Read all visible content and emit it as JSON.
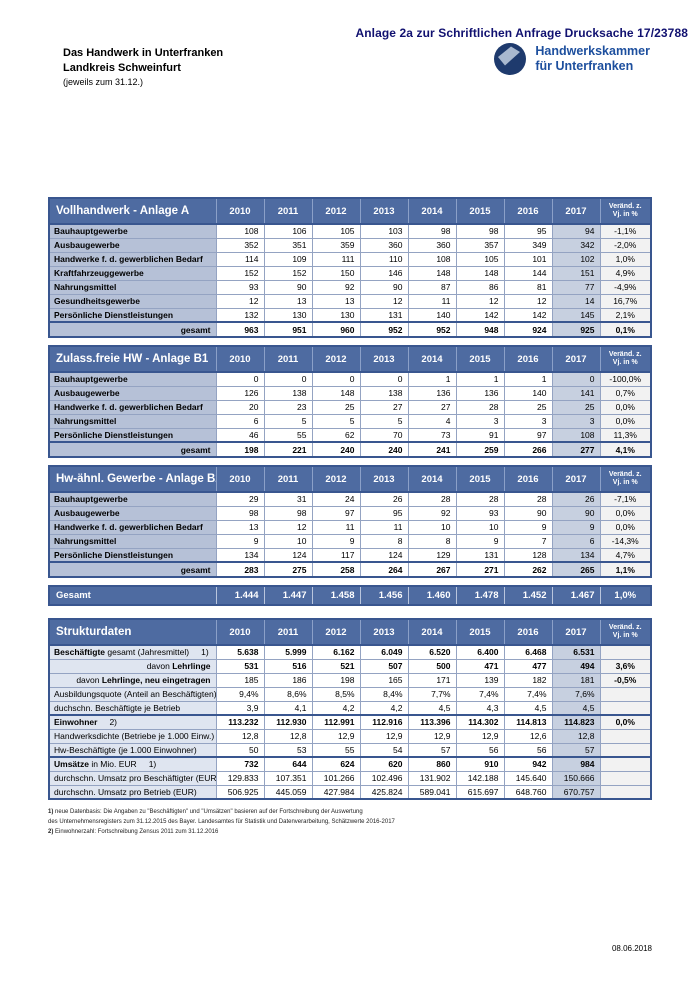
{
  "page": {
    "anlage_header": "Anlage 2a zur Schriftlichen Anfrage Drucksache 17/23788",
    "title_line1": "Das Handwerk in Unterfranken",
    "title_line2": "Landkreis Schweinfurt",
    "title_line3": "(jeweils zum 31.12.)",
    "logo_line1": "Handwerkskammer",
    "logo_line2": "für Unterfranken",
    "logo_icon": "hwk-circle-emblem",
    "footer_date": "08.06.2018"
  },
  "colors": {
    "header_blue": "#4e6ba1",
    "label_bg": "#b6c1d7",
    "label_bg_light": "#dfe5f0",
    "col2017_bg": "#c7d0e0",
    "change_bg": "#f2f2f2",
    "border_dark": "#39568f",
    "grid": "#94a3c2",
    "navy_text": "#111170",
    "logo_blue": "#1d4f9e",
    "logo_circle": "#1e3a6d",
    "logo_shape": "#a8b8cf"
  },
  "columns": {
    "years": [
      "2010",
      "2011",
      "2012",
      "2013",
      "2014",
      "2015",
      "2016",
      "2017"
    ],
    "change_label": "Veränd. z.\nVj. in %"
  },
  "tables": [
    {
      "title": "Vollhandwerk - Anlage A",
      "rows": [
        {
          "label": "Bauhauptgewerbe",
          "values": [
            "108",
            "106",
            "105",
            "103",
            "98",
            "98",
            "95",
            "94"
          ],
          "change": "-1,1%"
        },
        {
          "label": "Ausbaugewerbe",
          "values": [
            "352",
            "351",
            "359",
            "360",
            "360",
            "357",
            "349",
            "342"
          ],
          "change": "-2,0%"
        },
        {
          "label": "Handwerke f. d. gewerblichen Bedarf",
          "values": [
            "114",
            "109",
            "111",
            "110",
            "108",
            "105",
            "101",
            "102"
          ],
          "change": "1,0%"
        },
        {
          "label": "Kraftfahrzeuggewerbe",
          "values": [
            "152",
            "152",
            "150",
            "146",
            "148",
            "148",
            "144",
            "151"
          ],
          "change": "4,9%"
        },
        {
          "label": "Nahrungsmittel",
          "values": [
            "93",
            "90",
            "92",
            "90",
            "87",
            "86",
            "81",
            "77"
          ],
          "change": "-4,9%"
        },
        {
          "label": "Gesundheitsgewerbe",
          "values": [
            "12",
            "13",
            "13",
            "12",
            "11",
            "12",
            "12",
            "14"
          ],
          "change": "16,7%"
        },
        {
          "label": "Persönliche Dienstleistungen",
          "values": [
            "132",
            "130",
            "130",
            "131",
            "140",
            "142",
            "142",
            "145"
          ],
          "change": "2,1%"
        }
      ],
      "total": {
        "label": "gesamt",
        "values": [
          "963",
          "951",
          "960",
          "952",
          "952",
          "948",
          "924",
          "925"
        ],
        "change": "0,1%"
      }
    },
    {
      "title": "Zulass.freie HW - Anlage B1",
      "rows": [
        {
          "label": "Bauhauptgewerbe",
          "values": [
            "0",
            "0",
            "0",
            "0",
            "1",
            "1",
            "1",
            "0"
          ],
          "change": "-100,0%"
        },
        {
          "label": "Ausbaugewerbe",
          "values": [
            "126",
            "138",
            "148",
            "138",
            "136",
            "136",
            "140",
            "141"
          ],
          "change": "0,7%"
        },
        {
          "label": "Handwerke f. d. gewerblichen Bedarf",
          "values": [
            "20",
            "23",
            "25",
            "27",
            "27",
            "28",
            "25",
            "25"
          ],
          "change": "0,0%"
        },
        {
          "label": "Nahrungsmittel",
          "values": [
            "6",
            "5",
            "5",
            "5",
            "4",
            "3",
            "3",
            "3"
          ],
          "change": "0,0%"
        },
        {
          "label": "Persönliche Dienstleistungen",
          "values": [
            "46",
            "55",
            "62",
            "70",
            "73",
            "91",
            "97",
            "108"
          ],
          "change": "11,3%"
        }
      ],
      "total": {
        "label": "gesamt",
        "values": [
          "198",
          "221",
          "240",
          "240",
          "241",
          "259",
          "266",
          "277"
        ],
        "change": "4,1%"
      }
    },
    {
      "title": "Hw-ähnl. Gewerbe - Anlage B2",
      "rows": [
        {
          "label": "Bauhauptgewerbe",
          "values": [
            "29",
            "31",
            "24",
            "26",
            "28",
            "28",
            "28",
            "26"
          ],
          "change": "-7,1%"
        },
        {
          "label": "Ausbaugewerbe",
          "values": [
            "98",
            "98",
            "97",
            "95",
            "92",
            "93",
            "90",
            "90"
          ],
          "change": "0,0%"
        },
        {
          "label": "Handwerke f. d. gewerblichen Bedarf",
          "values": [
            "13",
            "12",
            "11",
            "11",
            "10",
            "10",
            "9",
            "9"
          ],
          "change": "0,0%"
        },
        {
          "label": "Nahrungsmittel",
          "values": [
            "9",
            "10",
            "9",
            "8",
            "8",
            "9",
            "7",
            "6"
          ],
          "change": "-14,3%"
        },
        {
          "label": "Persönliche Dienstleistungen",
          "values": [
            "134",
            "124",
            "117",
            "124",
            "129",
            "131",
            "128",
            "134"
          ],
          "change": "4,7%"
        }
      ],
      "total": {
        "label": "gesamt",
        "values": [
          "283",
          "275",
          "258",
          "264",
          "267",
          "271",
          "262",
          "265"
        ],
        "change": "1,1%"
      }
    }
  ],
  "grand_total": {
    "label": "Gesamt",
    "values": [
      "1.444",
      "1.447",
      "1.458",
      "1.456",
      "1.460",
      "1.478",
      "1.452",
      "1.467"
    ],
    "change": "1,0%"
  },
  "strukturdaten": {
    "title": "Strukturdaten",
    "rows": [
      {
        "parts": [
          {
            "text": "Beschäftigte",
            "bold": true
          },
          {
            "text": " gesamt (Jahresmittel)",
            "bold": false
          },
          {
            "text": "1)",
            "bold": false,
            "gap": true
          }
        ],
        "align": "left",
        "values_bold": true,
        "values": [
          "5.638",
          "5.999",
          "6.162",
          "6.049",
          "6.520",
          "6.400",
          "6.468",
          "6.531"
        ],
        "change": "",
        "change_bold": false,
        "thick_top": false
      },
      {
        "parts": [
          {
            "text": "davon ",
            "bold": false
          },
          {
            "text": "Lehrlinge",
            "bold": true
          }
        ],
        "align": "right",
        "values_bold": true,
        "values": [
          "531",
          "516",
          "521",
          "507",
          "500",
          "471",
          "477",
          "494"
        ],
        "change": "3,6%",
        "change_bold": true,
        "thick_top": false
      },
      {
        "parts": [
          {
            "text": "davon ",
            "bold": false
          },
          {
            "text": "Lehrlinge, neu eingetragen",
            "bold": true
          }
        ],
        "align": "right",
        "values_bold": false,
        "values": [
          "185",
          "186",
          "198",
          "165",
          "171",
          "139",
          "182",
          "181"
        ],
        "change": "-0,5%",
        "change_bold": true,
        "thick_top": false
      },
      {
        "parts": [
          {
            "text": "Ausbildungsquote (Anteil an Beschäftigten)",
            "bold": false
          }
        ],
        "align": "left",
        "values_bold": false,
        "values": [
          "9,4%",
          "8,6%",
          "8,5%",
          "8,4%",
          "7,7%",
          "7,4%",
          "7,4%",
          "7,6%"
        ],
        "change": "",
        "change_bold": false,
        "thick_top": false
      },
      {
        "parts": [
          {
            "text": "duchschn. Beschäftigte je Betrieb",
            "bold": false
          }
        ],
        "align": "left",
        "values_bold": false,
        "values": [
          "3,9",
          "4,1",
          "4,2",
          "4,2",
          "4,5",
          "4,3",
          "4,5",
          "4,5"
        ],
        "change": "",
        "change_bold": false,
        "thick_top": false
      },
      {
        "parts": [
          {
            "text": "Einwohner",
            "bold": true
          },
          {
            "text": "2)",
            "bold": false,
            "gap": true
          }
        ],
        "align": "left",
        "values_bold": true,
        "values": [
          "113.232",
          "112.930",
          "112.991",
          "112.916",
          "113.396",
          "114.302",
          "114.813",
          "114.823"
        ],
        "change": "0,0%",
        "change_bold": true,
        "thick_top": true
      },
      {
        "parts": [
          {
            "text": "Handwerksdichte (Betriebe je 1.000 Einw.)",
            "bold": false
          }
        ],
        "align": "left",
        "values_bold": false,
        "values": [
          "12,8",
          "12,8",
          "12,9",
          "12,9",
          "12,9",
          "12,9",
          "12,6",
          "12,8"
        ],
        "change": "",
        "change_bold": false,
        "thick_top": false
      },
      {
        "parts": [
          {
            "text": "Hw-Beschäftigte (je 1.000 Einwohner)",
            "bold": false
          }
        ],
        "align": "left",
        "values_bold": false,
        "values": [
          "50",
          "53",
          "55",
          "54",
          "57",
          "56",
          "56",
          "57"
        ],
        "change": "",
        "change_bold": false,
        "thick_top": false
      },
      {
        "parts": [
          {
            "text": "Umsätze",
            "bold": true
          },
          {
            "text": " in Mio. EUR",
            "bold": false
          },
          {
            "text": "1)",
            "bold": false,
            "gap": true
          }
        ],
        "align": "left",
        "values_bold": true,
        "values": [
          "732",
          "644",
          "624",
          "620",
          "860",
          "910",
          "942",
          "984"
        ],
        "change": "",
        "change_bold": false,
        "thick_top": true
      },
      {
        "parts": [
          {
            "text": "durchschn. Umsatz pro Beschäftigter (EUR)",
            "bold": false
          }
        ],
        "align": "left",
        "values_bold": false,
        "values": [
          "129.833",
          "107.351",
          "101.266",
          "102.496",
          "131.902",
          "142.188",
          "145.640",
          "150.666"
        ],
        "change": "",
        "change_bold": false,
        "thick_top": false
      },
      {
        "parts": [
          {
            "text": "durchschn. Umsatz pro Betrieb (EUR)",
            "bold": false
          }
        ],
        "align": "left",
        "values_bold": false,
        "values": [
          "506.925",
          "445.059",
          "427.984",
          "425.824",
          "589.041",
          "615.697",
          "648.760",
          "670.757"
        ],
        "change": "",
        "change_bold": false,
        "thick_top": false
      }
    ]
  },
  "footnotes": [
    {
      "marker": "1)",
      "text": "neue Datenbasis: Die Angaben zu \"Beschäftigten\" und \"Umsätzen\" basieren auf der Fortschreibung der Auswertung"
    },
    {
      "marker": "",
      "text": "des Unternehmensregisters zum 31.12.2015 des Bayer. Landesamtes für Statistik und Datenverarbeitung, Schätzwerte 2016-2017"
    },
    {
      "marker": "2)",
      "text": "Einwohnerzahl: Fortschreibung Zensus 2011 zum 31.12.2016"
    }
  ]
}
